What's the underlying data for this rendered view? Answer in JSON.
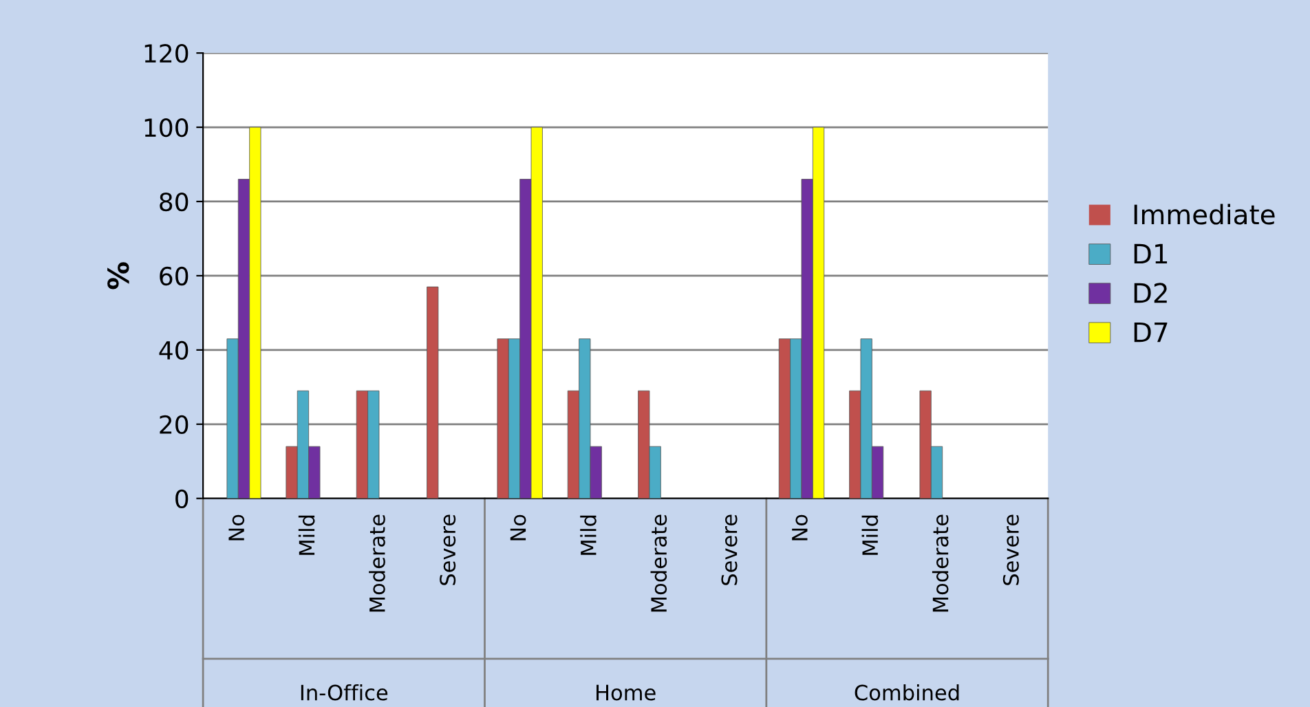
{
  "chart_data": {
    "type": "bar",
    "ylabel": "%",
    "categories": [
      "No",
      "Mild",
      "Moderate",
      "Severe",
      "No",
      "Mild",
      "Moderate",
      "Severe",
      "No",
      "Mild",
      "Moderate",
      "Severe"
    ],
    "series": [
      {
        "name": "Immediate",
        "color": "#c0504d",
        "values": [
          0,
          14,
          29,
          57,
          43,
          29,
          29,
          0,
          43,
          29,
          29,
          0
        ]
      },
      {
        "name": "D1",
        "color": "#4bacc6",
        "values": [
          43,
          29,
          29,
          0,
          43,
          43,
          14,
          0,
          43,
          43,
          14,
          0
        ]
      },
      {
        "name": "D2",
        "color": "#7030a0",
        "values": [
          86,
          14,
          0,
          0,
          86,
          14,
          0,
          0,
          86,
          14,
          0,
          0
        ]
      },
      {
        "name": "D7",
        "color": "#ffff00",
        "values": [
          100,
          0,
          0,
          0,
          100,
          0,
          0,
          0,
          100,
          0,
          0,
          0
        ]
      }
    ],
    "annotations": [
      "In-Office",
      "Home",
      "Combined"
    ],
    "ylim": [
      0,
      120
    ],
    "yticks": [
      0,
      20,
      40,
      60,
      80,
      100,
      120
    ],
    "grid": "y",
    "legend": "right"
  }
}
